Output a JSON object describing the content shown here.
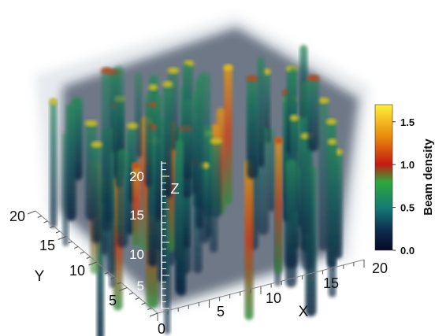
{
  "chart_data": {
    "type": "volume-3d",
    "colorbar": {
      "label": "Beam density",
      "range": [
        0.0,
        1.7
      ],
      "ticks": [
        "0.0",
        "0.5",
        "1.0",
        "1.5"
      ],
      "tick_values": [
        0.0,
        0.5,
        1.0,
        1.5
      ],
      "colors": [
        "#050a24",
        "#0e2d4f",
        "#147a74",
        "#2fa83a",
        "#c41a12",
        "#e88a0c",
        "#fff03a"
      ]
    },
    "axes": {
      "x": {
        "label": "X",
        "range": [
          0,
          20
        ],
        "ticks": [
          "0",
          "5",
          "10",
          "15",
          "20"
        ]
      },
      "y": {
        "label": "Y",
        "range": [
          0,
          20
        ],
        "ticks": [
          "5",
          "10",
          "15",
          "20"
        ]
      },
      "z": {
        "label": "Z",
        "range": [
          0,
          20
        ],
        "ticks": [
          "5",
          "10",
          "15",
          "20"
        ]
      }
    }
  }
}
